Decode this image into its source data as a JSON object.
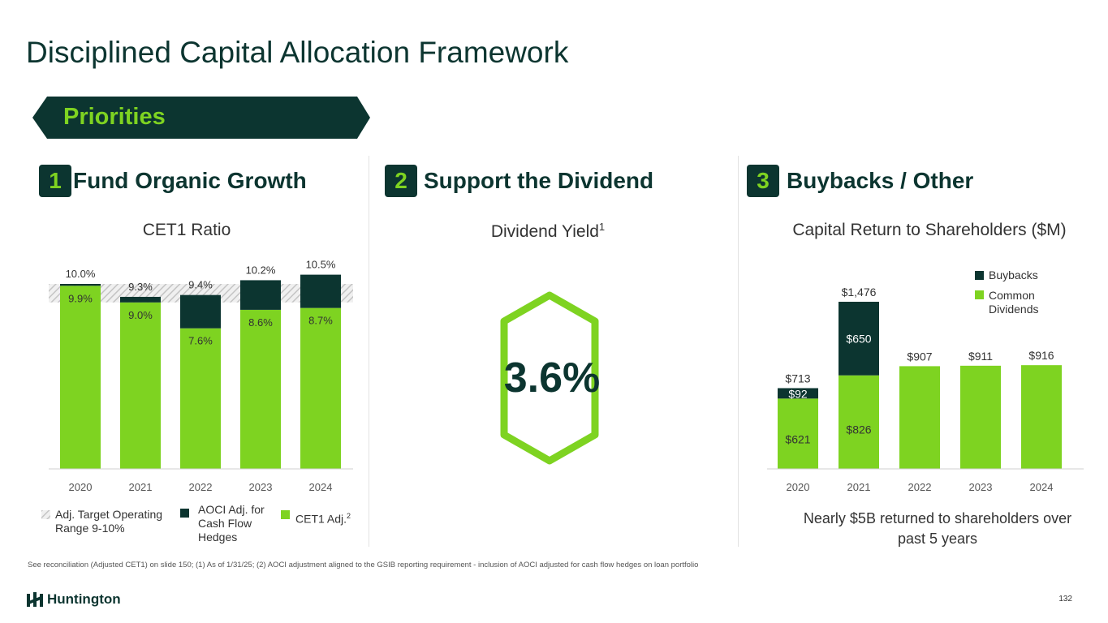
{
  "title": "Disciplined Capital Allocation Framework",
  "banner": "Priorities",
  "sections": [
    {
      "number": "1",
      "title": "Fund Organic Growth",
      "subtitle": "CET1 Ratio"
    },
    {
      "number": "2",
      "title": "Support the Dividend",
      "subtitle": "Dividend Yield",
      "subtitle_sup": "1"
    },
    {
      "number": "3",
      "title": "Buybacks / Other",
      "subtitle": "Capital Return to Shareholders ($M)"
    }
  ],
  "cet1_legend": {
    "target": "Adj. Target Operating Range 9-10%",
    "aoci": "AOCI Adj. for Cash Flow Hedges",
    "cet1": "CET1 Adj.",
    "cet1_sup": "2"
  },
  "dividend_yield": "3.6%",
  "capital_legend": {
    "buybacks": "Buybacks",
    "dividends": "Common Dividends"
  },
  "capital_caption": "Nearly $5B returned to shareholders over past 5 years",
  "footnote": "See reconciliation (Adjusted CET1) on slide 150; (1) As of 1/31/25; (2) AOCI adjustment aligned to the GSIB reporting requirement - inclusion of AOCI adjusted for cash flow hedges on loan portfolio",
  "logo": "Huntington",
  "page_number": "132",
  "colors": {
    "dark": "#0c3530",
    "green": "#7ed321"
  },
  "chart_data": [
    {
      "type": "bar",
      "stacked": true,
      "categories": [
        "2020",
        "2021",
        "2022",
        "2023",
        "2024"
      ],
      "series": [
        {
          "name": "CET1 Adj.",
          "values": [
            9.9,
            9.0,
            7.6,
            8.6,
            8.7
          ],
          "labels": [
            "9.9%",
            "9.0%",
            "7.6%",
            "8.6%",
            "8.7%"
          ]
        },
        {
          "name": "AOCI Adj. for Cash Flow Hedges",
          "values": [
            0.1,
            0.3,
            1.8,
            1.6,
            1.8
          ]
        }
      ],
      "totals": [
        10.0,
        9.3,
        9.4,
        10.2,
        10.5
      ],
      "total_labels": [
        "10.0%",
        "9.3%",
        "9.4%",
        "10.2%",
        "10.5%"
      ],
      "target_range": [
        9,
        10
      ]
    },
    {
      "type": "bar",
      "stacked": true,
      "categories": [
        "2020",
        "2021",
        "2022",
        "2023",
        "2024"
      ],
      "series": [
        {
          "name": "Common Dividends",
          "values": [
            621,
            826,
            907,
            911,
            916
          ],
          "labels": [
            "$621",
            "$826",
            "",
            "",
            ""
          ]
        },
        {
          "name": "Buybacks",
          "values": [
            92,
            650,
            0,
            0,
            0
          ],
          "labels": [
            "$92",
            "$650",
            "",
            "",
            ""
          ]
        }
      ],
      "totals": [
        713,
        1476,
        907,
        911,
        916
      ],
      "total_labels": [
        "$713",
        "$1,476",
        "$907",
        "$911",
        "$916"
      ]
    }
  ]
}
